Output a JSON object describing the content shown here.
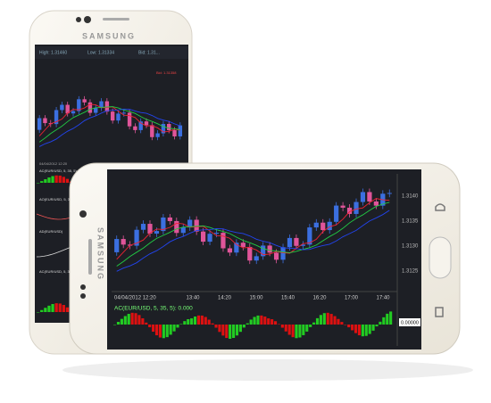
{
  "back_phone": {
    "brand": "SAMSUNG",
    "info_bar": {
      "high": "High: 1.31460",
      "low": "Low: 1.31334",
      "bid": "Bid: 1.31..."
    },
    "chart_label": "Bid: 1.31358",
    "date_label": "04/04/2012 12:20",
    "panels": [
      "AC(EUR/USD, 5, 35, 5)",
      "AO(EUR/USD, 5, 34)",
      "AD(EUR/USD)",
      "AC(EUR/USD, 5, 35)"
    ]
  },
  "front_phone": {
    "brand": "SAMSUNG",
    "price_labels": [
      "1.3140",
      "1.3135",
      "1.3130",
      "1.3125"
    ],
    "date_label": "04/04/2012 12:20",
    "time_labels": [
      "13:40",
      "14:20",
      "15:00",
      "15:40",
      "16:20",
      "17:00",
      "17:40"
    ],
    "indicator_label": "AC(EUR/USD, 5, 35, 5): 0.000",
    "indicator_value": "0.00000"
  }
}
